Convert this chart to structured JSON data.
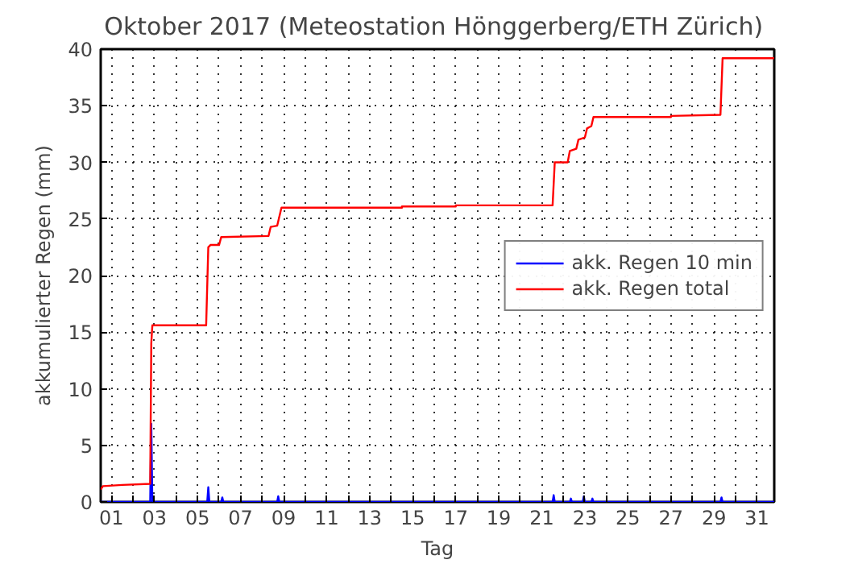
{
  "chart_data": {
    "type": "line",
    "title": "Oktober 2017  (Meteostation Hönggerberg/ETH Zürich)",
    "xlabel": "Tag",
    "ylabel": "akkumulierter Regen (mm)",
    "xlim": [
      0.5,
      31.8
    ],
    "ylim": [
      0,
      40
    ],
    "yticks": [
      0,
      5,
      10,
      15,
      20,
      25,
      30,
      35,
      40
    ],
    "xticks": [
      {
        "value": 1,
        "label": "01"
      },
      {
        "value": 2,
        "label": null
      },
      {
        "value": 3,
        "label": "03"
      },
      {
        "value": 4,
        "label": null
      },
      {
        "value": 5,
        "label": "05"
      },
      {
        "value": 6,
        "label": null
      },
      {
        "value": 7,
        "label": "07"
      },
      {
        "value": 8,
        "label": null
      },
      {
        "value": 9,
        "label": "09"
      },
      {
        "value": 10,
        "label": null
      },
      {
        "value": 11,
        "label": "11"
      },
      {
        "value": 12,
        "label": null
      },
      {
        "value": 13,
        "label": "13"
      },
      {
        "value": 14,
        "label": null
      },
      {
        "value": 15,
        "label": "15"
      },
      {
        "value": 16,
        "label": null
      },
      {
        "value": 17,
        "label": "17"
      },
      {
        "value": 18,
        "label": null
      },
      {
        "value": 19,
        "label": "19"
      },
      {
        "value": 20,
        "label": null
      },
      {
        "value": 21,
        "label": "21"
      },
      {
        "value": 22,
        "label": null
      },
      {
        "value": 23,
        "label": "23"
      },
      {
        "value": 24,
        "label": null
      },
      {
        "value": 25,
        "label": "25"
      },
      {
        "value": 26,
        "label": null
      },
      {
        "value": 27,
        "label": "27"
      },
      {
        "value": 28,
        "label": null
      },
      {
        "value": 29,
        "label": "29"
      },
      {
        "value": 30,
        "label": null
      },
      {
        "value": 31,
        "label": "31"
      }
    ],
    "grid": true,
    "legend": "right",
    "line_style": "solid",
    "marker": "none",
    "series": [
      {
        "name": "akk. Regen 10 min",
        "color": "#0000ff",
        "x": [
          0.5,
          2.8,
          2.85,
          2.9,
          5.45,
          5.5,
          5.55,
          6.1,
          6.15,
          6.2,
          8.7,
          8.75,
          8.8,
          21.5,
          21.55,
          21.6,
          22.3,
          22.35,
          22.4,
          22.9,
          22.95,
          23.0,
          23.3,
          23.35,
          23.4,
          29.3,
          29.35,
          29.4,
          31.8
        ],
        "values": [
          0,
          0,
          6.9,
          0,
          0,
          1.3,
          0,
          0,
          0.4,
          0,
          0,
          0.5,
          0,
          0,
          0.6,
          0,
          0,
          0.3,
          0,
          0,
          0.5,
          0,
          0,
          0.3,
          0,
          0,
          0.4,
          0,
          0
        ]
      },
      {
        "name": "akk. Regen total",
        "color": "#ff0000",
        "x": [
          0.5,
          0.6,
          1.5,
          2.8,
          2.85,
          2.9,
          5.4,
          5.5,
          5.6,
          6.0,
          6.1,
          8.3,
          8.4,
          8.7,
          8.9,
          14.5,
          14.5,
          17.0,
          17.0,
          21.5,
          21.6,
          22.2,
          22.3,
          22.6,
          22.7,
          23.0,
          23.1,
          23.3,
          23.4,
          27.0,
          27.0,
          29.3,
          29.4,
          31.8
        ],
        "values": [
          1.1,
          1.4,
          1.5,
          1.6,
          14.0,
          15.6,
          15.6,
          22.5,
          22.7,
          22.7,
          23.4,
          23.5,
          24.3,
          24.4,
          26.0,
          26.0,
          26.1,
          26.1,
          26.2,
          26.2,
          30.0,
          30.0,
          31.0,
          31.2,
          32.0,
          32.2,
          33.0,
          33.2,
          34.0,
          34.0,
          34.1,
          34.2,
          39.2,
          39.2
        ]
      }
    ]
  }
}
